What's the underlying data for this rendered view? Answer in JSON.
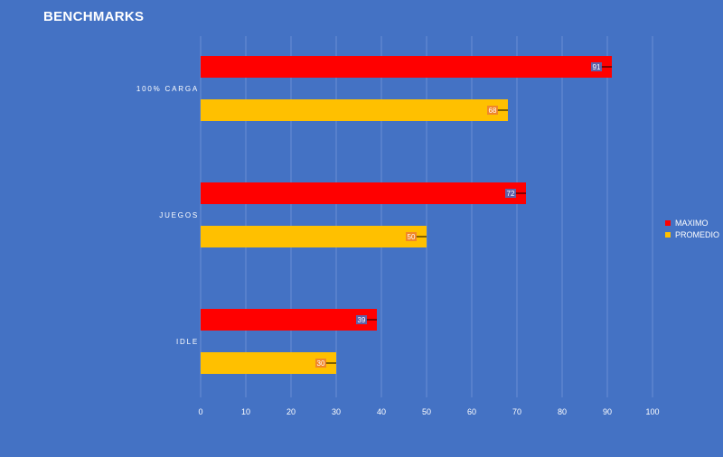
{
  "title": "BENCHMARKS",
  "chart_data": {
    "type": "bar",
    "orientation": "horizontal",
    "title": "BENCHMARKS",
    "categories": [
      "100% CARGA",
      "JUEGOS",
      "IDLE"
    ],
    "series": [
      {
        "name": "MAXIMO",
        "values": [
          91,
          72,
          39
        ],
        "color": "#ff0000"
      },
      {
        "name": "PROMEDIO",
        "values": [
          68,
          50,
          30
        ],
        "color": "#ffc000"
      }
    ],
    "xlim": [
      0,
      100
    ],
    "xticks": [
      "0",
      "10",
      "20",
      "30",
      "40",
      "50",
      "60",
      "70",
      "80",
      "90",
      "100"
    ],
    "grid": true,
    "legend_position": "right",
    "data_labels": true
  }
}
